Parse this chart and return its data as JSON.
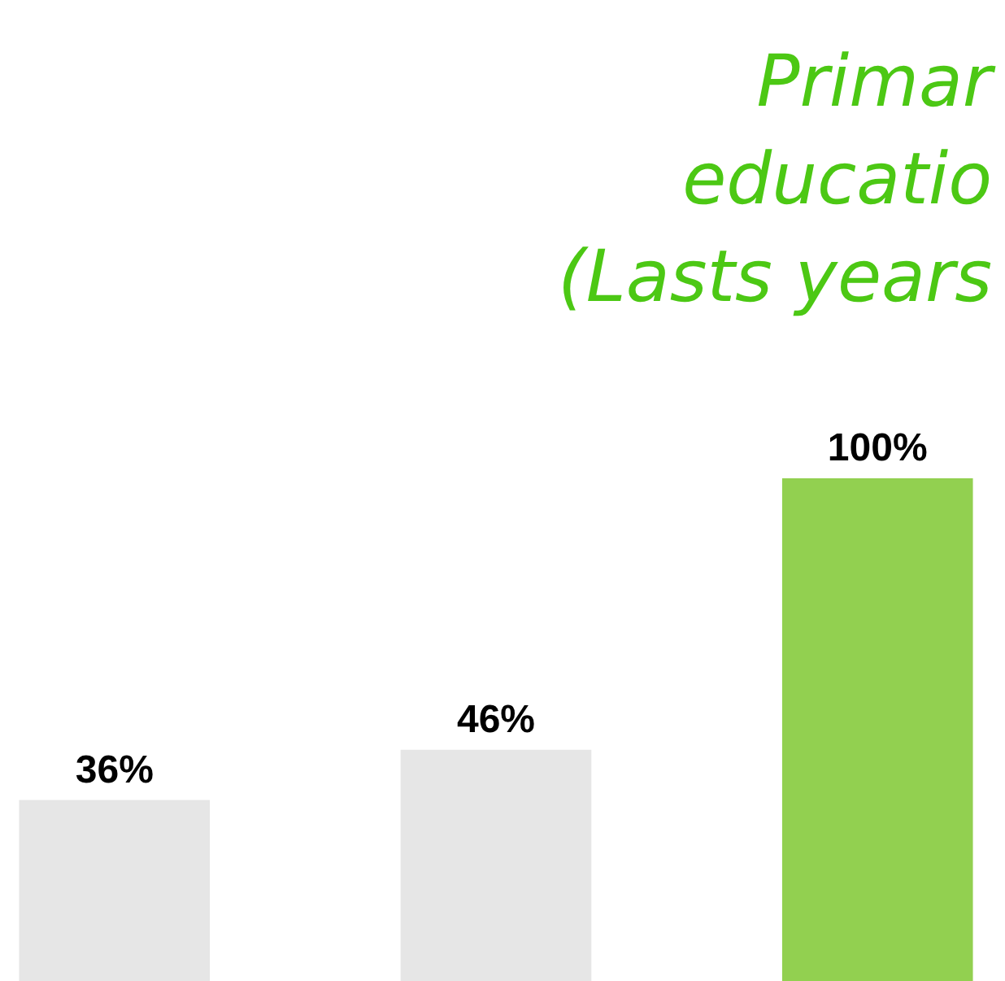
{
  "chart_data": {
    "type": "bar",
    "title": [
      "Primar",
      "educatio",
      "(Lasts years"
    ],
    "categories": [
      null,
      null,
      null
    ],
    "values": [
      36,
      46,
      100
    ],
    "colors": [
      "#e6e6e6",
      "#e6e6e6",
      "#92d050"
    ],
    "value_labels": [
      "36%",
      "46%",
      "100%"
    ]
  }
}
